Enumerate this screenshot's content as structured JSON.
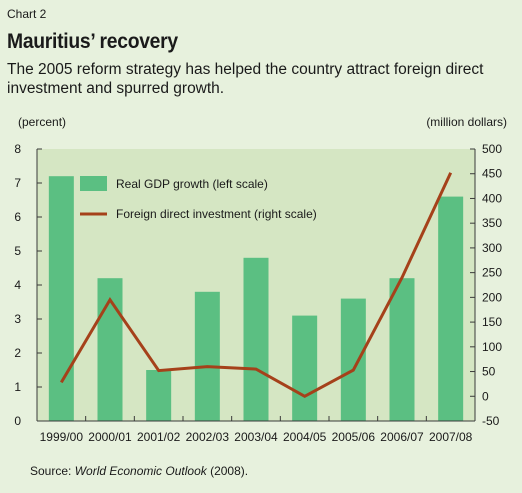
{
  "header": {
    "chart_label": "Chart 2",
    "title": "Mauritius’ recovery",
    "subtitle": "The 2005 reform strategy has helped the country attract foreign direct investment and spurred growth."
  },
  "source": {
    "prefix": "Source: ",
    "work": "World Economic Outlook",
    "suffix": " (2008)."
  },
  "colors": {
    "plot_bg": "#d5e6c3",
    "bar": "#5bbf82",
    "line": "#a5411a",
    "axis": "#3a3a3a"
  },
  "chart_data": {
    "type": "bar",
    "categories": [
      "1999/00",
      "2000/01",
      "2001/02",
      "2002/03",
      "2003/04",
      "2004/05",
      "2005/06",
      "2006/07",
      "2007/08"
    ],
    "left_axis": {
      "label": "(percent)",
      "ylim": [
        0,
        8
      ],
      "ticks": [
        0,
        1,
        2,
        3,
        4,
        5,
        6,
        7,
        8
      ]
    },
    "right_axis": {
      "label": "(million dollars)",
      "ylim": [
        -50,
        500
      ],
      "ticks": [
        -50,
        0,
        50,
        100,
        150,
        200,
        250,
        300,
        350,
        400,
        450,
        500
      ]
    },
    "series": [
      {
        "name": "Real GDP growth (left scale)",
        "type": "bar",
        "axis": "left",
        "values": [
          7.2,
          4.2,
          1.5,
          3.8,
          4.8,
          3.1,
          3.6,
          4.2,
          6.6
        ]
      },
      {
        "name": "Foreign direct investment (right scale)",
        "type": "line",
        "axis": "right",
        "values": [
          28,
          195,
          52,
          60,
          55,
          0,
          53,
          240,
          452
        ]
      }
    ],
    "legend_position": "top-left",
    "grid": false
  }
}
